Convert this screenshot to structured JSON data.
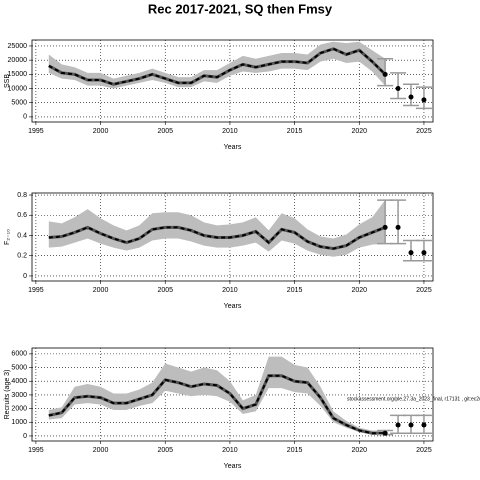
{
  "title": "Rec 2017-2021, SQ then Fmsy",
  "chart_data": [
    {
      "type": "line",
      "xlabel": "Years",
      "ylabel": "SSB",
      "xlim": [
        1994.7,
        2025.7
      ],
      "xticks": [
        1995,
        2000,
        2005,
        2010,
        2015,
        2020,
        2025
      ],
      "ylim": [
        -1800,
        27100
      ],
      "yticks": [
        0,
        5000,
        10000,
        15000,
        20000,
        25000
      ],
      "grid": true,
      "x": [
        1996,
        1997,
        1998,
        1999,
        2000,
        2001,
        2002,
        2003,
        2004,
        2005,
        2006,
        2007,
        2008,
        2009,
        2010,
        2011,
        2012,
        2013,
        2014,
        2015,
        2016,
        2017,
        2018,
        2019,
        2020,
        2021,
        2022
      ],
      "values": [
        18000,
        15500,
        15000,
        13000,
        13000,
        11500,
        12500,
        13500,
        15000,
        13500,
        12000,
        12000,
        14500,
        14000,
        16500,
        18500,
        17500,
        18500,
        19500,
        19500,
        19000,
        22500,
        24000,
        22000,
        23500,
        19500,
        15000
      ],
      "lower": [
        15500,
        13500,
        13000,
        11000,
        11000,
        10000,
        11000,
        12000,
        13000,
        12000,
        10500,
        10500,
        12500,
        12000,
        14500,
        16000,
        15500,
        16000,
        17000,
        17000,
        16500,
        19500,
        20500,
        19000,
        19500,
        16000,
        11000
      ],
      "upper": [
        22000,
        18500,
        17500,
        15500,
        15500,
        13500,
        14500,
        15500,
        17000,
        15500,
        14000,
        14000,
        16500,
        16500,
        19000,
        21500,
        20500,
        21500,
        22500,
        22500,
        22000,
        25500,
        26500,
        26000,
        26500,
        23500,
        20500
      ],
      "forecast": {
        "x": [
          2022,
          2023,
          2024,
          2025
        ],
        "values": [
          15000,
          10000,
          7000,
          6000
        ],
        "lower": [
          11000,
          6500,
          4000,
          3000
        ],
        "upper": [
          20500,
          15500,
          11500,
          10500
        ]
      }
    },
    {
      "type": "line",
      "xlabel": "Years",
      "ylabel": "F₂₋₁₀",
      "xlim": [
        1994.7,
        2025.7
      ],
      "xticks": [
        1995,
        2000,
        2005,
        2010,
        2015,
        2020,
        2025
      ],
      "ylim": [
        -0.05,
        0.82
      ],
      "yticks": [
        0,
        0.2,
        0.4,
        0.6,
        0.8
      ],
      "grid": true,
      "x": [
        1996,
        1997,
        1998,
        1999,
        2000,
        2001,
        2002,
        2003,
        2004,
        2005,
        2006,
        2007,
        2008,
        2009,
        2010,
        2011,
        2012,
        2013,
        2014,
        2015,
        2016,
        2017,
        2018,
        2019,
        2020,
        2021,
        2022
      ],
      "values": [
        0.38,
        0.39,
        0.43,
        0.48,
        0.42,
        0.37,
        0.33,
        0.37,
        0.46,
        0.48,
        0.48,
        0.45,
        0.4,
        0.38,
        0.38,
        0.4,
        0.44,
        0.33,
        0.46,
        0.43,
        0.34,
        0.29,
        0.27,
        0.3,
        0.38,
        0.43,
        0.48
      ],
      "lower": [
        0.28,
        0.29,
        0.33,
        0.37,
        0.32,
        0.28,
        0.25,
        0.28,
        0.35,
        0.37,
        0.37,
        0.34,
        0.3,
        0.28,
        0.28,
        0.3,
        0.33,
        0.24,
        0.35,
        0.32,
        0.25,
        0.21,
        0.19,
        0.21,
        0.28,
        0.31,
        0.32
      ],
      "upper": [
        0.54,
        0.52,
        0.58,
        0.66,
        0.57,
        0.5,
        0.45,
        0.5,
        0.62,
        0.63,
        0.63,
        0.6,
        0.53,
        0.5,
        0.51,
        0.53,
        0.58,
        0.45,
        0.62,
        0.57,
        0.46,
        0.39,
        0.37,
        0.41,
        0.51,
        0.58,
        0.75
      ],
      "forecast": {
        "x": [
          2022,
          2023,
          2024,
          2025
        ],
        "values": [
          0.48,
          0.48,
          0.23,
          0.23
        ],
        "lower": [
          0.32,
          0.32,
          0.15,
          0.15
        ],
        "upper": [
          0.75,
          0.75,
          0.35,
          0.35
        ]
      }
    },
    {
      "type": "line",
      "xlabel": "Years",
      "ylabel": "Recruits (age 3)",
      "annotation": "stockassessment.org/ple.27.3a_2023_final, r17131 , git:ec2c",
      "xlim": [
        1994.7,
        2025.7
      ],
      "xticks": [
        1995,
        2000,
        2005,
        2010,
        2015,
        2020,
        2025
      ],
      "ylim": [
        -370,
        6430
      ],
      "yticks": [
        0,
        1000,
        2000,
        3000,
        4000,
        5000,
        6000
      ],
      "grid": true,
      "x": [
        1996,
        1997,
        1998,
        1999,
        2000,
        2001,
        2002,
        2003,
        2004,
        2005,
        2006,
        2007,
        2008,
        2009,
        2010,
        2011,
        2012,
        2013,
        2014,
        2015,
        2016,
        2017,
        2018,
        2019,
        2020,
        2021,
        2022
      ],
      "values": [
        1500,
        1700,
        2800,
        2900,
        2800,
        2400,
        2400,
        2700,
        3000,
        4100,
        3900,
        3600,
        3800,
        3700,
        3100,
        2000,
        2300,
        4400,
        4400,
        4000,
        3900,
        2800,
        1300,
        800,
        400,
        200,
        200
      ],
      "lower": [
        1200,
        1300,
        2300,
        2400,
        2300,
        1900,
        1900,
        2200,
        2400,
        3300,
        3100,
        2900,
        3000,
        2900,
        2500,
        1600,
        1800,
        3500,
        3500,
        3200,
        3100,
        2200,
        1000,
        600,
        300,
        100,
        100
      ],
      "upper": [
        1900,
        2100,
        3600,
        3800,
        3600,
        3100,
        3100,
        3400,
        3900,
        5300,
        5000,
        4700,
        5000,
        4800,
        4000,
        2600,
        3000,
        5800,
        5800,
        5200,
        5000,
        3600,
        1800,
        1100,
        600,
        400,
        400
      ],
      "forecast": {
        "x": [
          2022,
          2023,
          2024,
          2025
        ],
        "values": [
          200,
          800,
          800,
          800
        ],
        "lower": [
          100,
          200,
          200,
          200
        ],
        "upper": [
          400,
          1500,
          1500,
          1500
        ]
      }
    }
  ]
}
